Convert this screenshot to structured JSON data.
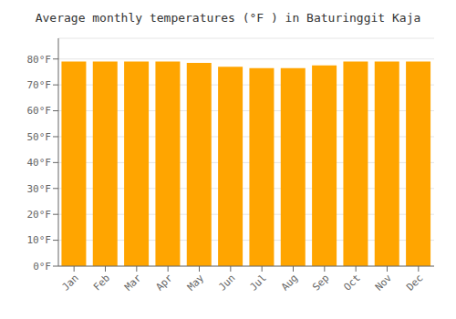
{
  "chart_data": {
    "type": "bar",
    "title": "Average monthly temperatures (°F ) in Baturinggit Kaja",
    "categories": [
      "Jan",
      "Feb",
      "Mar",
      "Apr",
      "May",
      "Jun",
      "Jul",
      "Aug",
      "Sep",
      "Oct",
      "Nov",
      "Dec"
    ],
    "values": [
      79.0,
      79.0,
      79.0,
      79.0,
      78.5,
      77.0,
      76.5,
      76.5,
      77.5,
      79.0,
      79.0,
      79.0
    ],
    "color": "#FFA500",
    "ylim": [
      0,
      88
    ],
    "yticks": [
      {
        "value": 0,
        "label": "0°F"
      },
      {
        "value": 10,
        "label": "10°F"
      },
      {
        "value": 20,
        "label": "20°F"
      },
      {
        "value": 30,
        "label": "30°F"
      },
      {
        "value": 40,
        "label": "40°F"
      },
      {
        "value": 50,
        "label": "50°F"
      },
      {
        "value": 60,
        "label": "60°F"
      },
      {
        "value": 70,
        "label": "70°F"
      },
      {
        "value": 80,
        "label": "80°F"
      }
    ],
    "grid": true
  }
}
